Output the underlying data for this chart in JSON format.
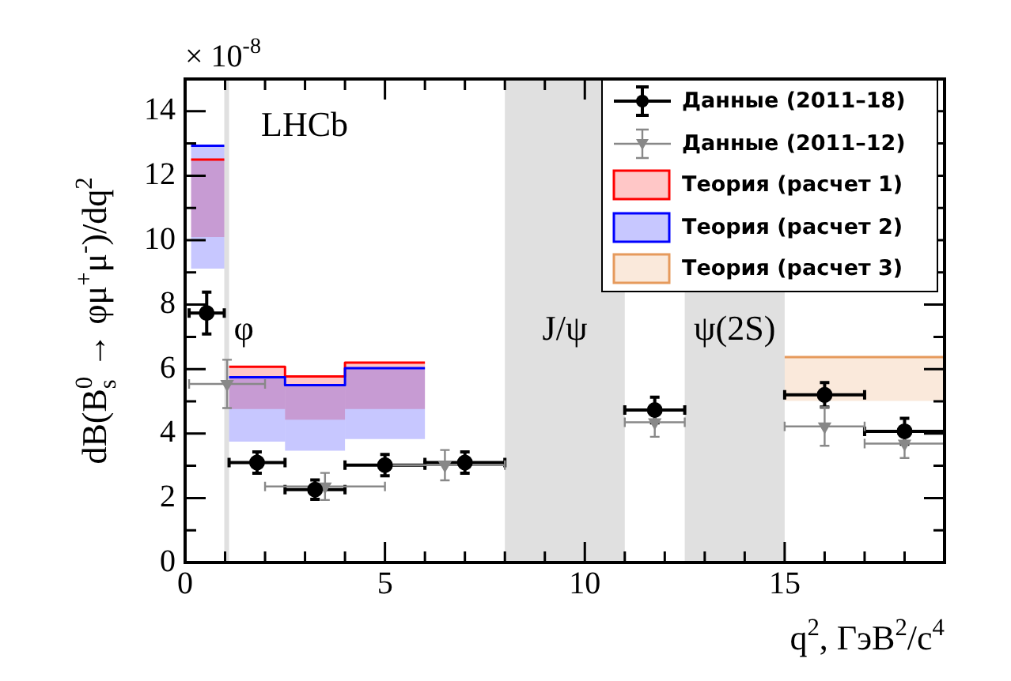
{
  "chart_data": {
    "type": "scatter",
    "xlabel": "q$^{2}$, ГэВ$^{2}$/c$^{4}$",
    "ylabel": "dB(B$_{s}$$^{0}$ → φμ$^{+}$μ$^{-}$)/dq$^{2}$",
    "annotations": [
      "× 10$^{-8}$",
      "LHCb"
    ],
    "xlim": [
      0,
      19
    ],
    "ylim": [
      0,
      15
    ],
    "xticks": [
      0,
      {
        "value": 1,
        "label": null
      },
      {
        "value": 2,
        "label": null
      },
      {
        "value": 3,
        "label": null
      },
      {
        "value": 4,
        "label": null
      },
      5,
      {
        "value": 6,
        "label": null
      },
      {
        "value": 7,
        "label": null
      },
      {
        "value": 8,
        "label": null
      },
      {
        "value": 9,
        "label": null
      },
      10,
      {
        "value": 11,
        "label": null
      },
      {
        "value": 12,
        "label": null
      },
      {
        "value": 13,
        "label": null
      },
      {
        "value": 14,
        "label": null
      },
      15,
      {
        "value": 16,
        "label": null
      },
      {
        "value": 17,
        "label": null
      },
      {
        "value": 18,
        "label": null
      }
    ],
    "yticks": [
      0,
      {
        "value": 1,
        "label": null
      },
      2,
      {
        "value": 3,
        "label": null
      },
      4,
      {
        "value": 5,
        "label": null
      },
      6,
      {
        "value": 7,
        "label": null
      },
      8,
      {
        "value": 9,
        "label": null
      },
      10,
      {
        "value": 11,
        "label": null
      },
      12,
      {
        "value": 13,
        "label": null
      },
      14
    ],
    "legend": "top right",
    "bands": [
      {
        "axis": "x",
        "from": 0.98,
        "to": 1.1,
        "label": "φ",
        "color": "#e0e0e0"
      },
      {
        "axis": "x",
        "from": 8,
        "to": 11,
        "label": "J/ψ",
        "color": "#e0e0e0"
      },
      {
        "axis": "x",
        "from": 12.5,
        "to": 15,
        "label": "ψ(2S)",
        "color": "#e0e0e0"
      }
    ],
    "series": [
      {
        "name": "Данные (2011–18)",
        "type": "scatter",
        "color": "#000000",
        "marker": "circle",
        "x": [
          0.54,
          1.8,
          3.25,
          5,
          7,
          11.75,
          16,
          18
        ],
        "xerrors": [
          0.44,
          0.7,
          0.75,
          1,
          1,
          0.75,
          1,
          1
        ],
        "values": [
          7.74,
          3.1,
          2.26,
          3.02,
          3.1,
          4.73,
          5.2,
          4.07
        ],
        "errors": [
          0.65,
          0.33,
          0.3,
          0.33,
          0.33,
          0.4,
          0.38,
          0.4
        ]
      },
      {
        "name": "Данные (2011–12)",
        "type": "scatter",
        "color": "#888888",
        "marker": "triangle",
        "x": [
          1.05,
          3.5,
          6.5,
          11.75,
          16,
          18
        ],
        "xerrors": [
          0.95,
          1.5,
          1.5,
          0.75,
          1,
          1
        ],
        "values": [
          5.54,
          2.36,
          3.02,
          4.35,
          4.22,
          3.69
        ],
        "errors": [
          0.75,
          0.42,
          0.47,
          0.45,
          0.6,
          0.45
        ]
      },
      {
        "name": "Теория (расчет 1)",
        "type": "step",
        "color": "#ff0000",
        "x": [
          0.15,
          0.98,
          1.1,
          2.5,
          4,
          6
        ],
        "values": [
          12.5,
          null,
          6.07,
          5.77,
          6.2,
          6.2
        ],
        "upper": [
          12.5,
          null,
          6.07,
          5.77,
          6.2,
          6.2
        ],
        "lower": [
          10.1,
          null,
          4.76,
          4.43,
          4.76,
          4.76
        ]
      },
      {
        "name": "Теория (расчет 2)",
        "type": "step",
        "color": "#0000ff",
        "x": [
          0.15,
          0.98,
          1.1,
          2.5,
          4,
          6
        ],
        "values": [
          12.93,
          null,
          5.75,
          5.5,
          6.03,
          6.03
        ],
        "upper": [
          12.93,
          null,
          5.75,
          5.5,
          6.03,
          6.03
        ],
        "lower": [
          9.12,
          null,
          3.75,
          3.47,
          3.83,
          3.83
        ]
      },
      {
        "name": "Теория (расчет 3)",
        "type": "step",
        "color": "#e69a5c",
        "x": [
          15,
          19
        ],
        "values": [
          6.37,
          6.37
        ],
        "upper": [
          6.37,
          6.37
        ],
        "lower": [
          5.01,
          5.01
        ]
      }
    ]
  }
}
